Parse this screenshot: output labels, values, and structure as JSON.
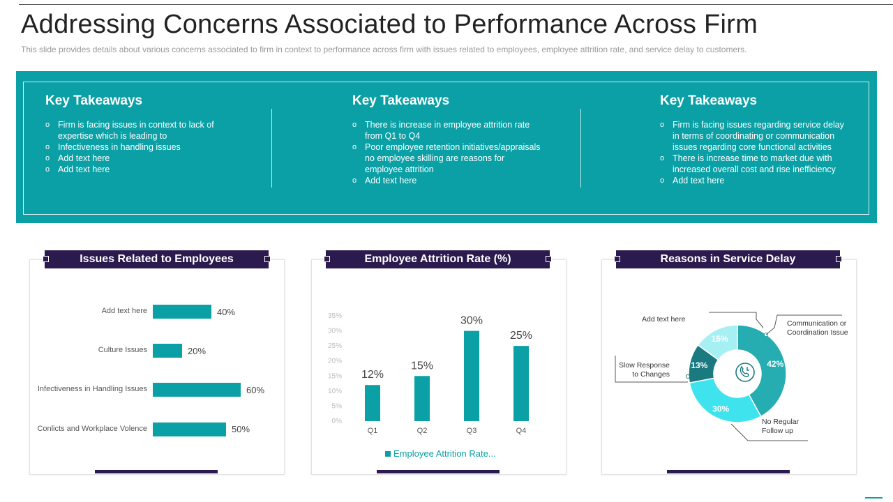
{
  "slide": {
    "title": "Addressing Concerns Associated to Performance Across Firm",
    "subtitle": "This slide provides  details about various  concerns associated to firm in context to performance  across firm with issues related to employees, employee attrition rate, and service delay to customers."
  },
  "takeaways": [
    {
      "title": "Key Takeaways",
      "items": [
        "Firm is facing issues in context to lack of expertise which is leading to",
        " Infectiveness  in handling issues",
        "Add text here",
        "Add text here"
      ]
    },
    {
      "title": "Key Takeaways",
      "items": [
        "There is increase in employee attrition rate from Q1 to Q4",
        "Poor employee retention initiatives/appraisals no employee skilling are reasons for employee attrition",
        "Add text here"
      ]
    },
    {
      "title": "Key Takeaways",
      "items": [
        "Firm is facing issues regarding  service delay in terms of coordinating or communication issues regarding  core functional activities",
        "There is increase time to market due with increased overall  cost and rise inefficiency",
        "Add text here"
      ]
    }
  ],
  "cards": {
    "employees": {
      "title": "Issues  Related to Employees"
    },
    "attrition": {
      "title": "Employee Attrition Rate (%)",
      "legend": "Employee Attrition Rate..."
    },
    "delay": {
      "title": "Reasons in Service Delay"
    }
  },
  "chart_data": [
    {
      "type": "bar",
      "orientation": "horizontal",
      "categories": [
        "Add text here",
        "Culture Issues",
        "Infectiveness in Handling Issues",
        "Conlicts and Workplace Volence"
      ],
      "values": [
        40,
        20,
        60,
        50
      ],
      "labels": [
        "40%",
        "20%",
        "60%",
        "50%"
      ],
      "title": "Issues  Related to Employees",
      "color": "#0aa0a5"
    },
    {
      "type": "bar",
      "categories": [
        "Q1",
        "Q2",
        "Q3",
        "Q4"
      ],
      "series": [
        {
          "name": "Employee Attrition Rate...",
          "values": [
            12,
            15,
            30,
            25
          ]
        }
      ],
      "labels": [
        "12%",
        "15%",
        "30%",
        "25%"
      ],
      "title": "Employee Attrition Rate (%)",
      "ylim": [
        0,
        35
      ],
      "yticks": [
        "0%",
        "5%",
        "10%",
        "15%",
        "20%",
        "25%",
        "30%",
        "35%"
      ],
      "color": "#0aa0a5"
    },
    {
      "type": "pie",
      "style": "donut",
      "title": "Reasons in Service Delay",
      "slices": [
        {
          "label": "Communication or Coordination Issue",
          "value": 42,
          "text": "42%",
          "color": "#25adb2"
        },
        {
          "label": "No Regular Follow up",
          "value": 30,
          "text": "30%",
          "color": "#3fe3ee"
        },
        {
          "label": "Slow Response to Changes",
          "value": 13,
          "text": "13%",
          "color": "#1b7a80"
        },
        {
          "label": "Add text here",
          "value": 15,
          "text": "15%",
          "color": "#a6f0f4"
        }
      ],
      "center_icon": "phone-clock-icon"
    }
  ]
}
